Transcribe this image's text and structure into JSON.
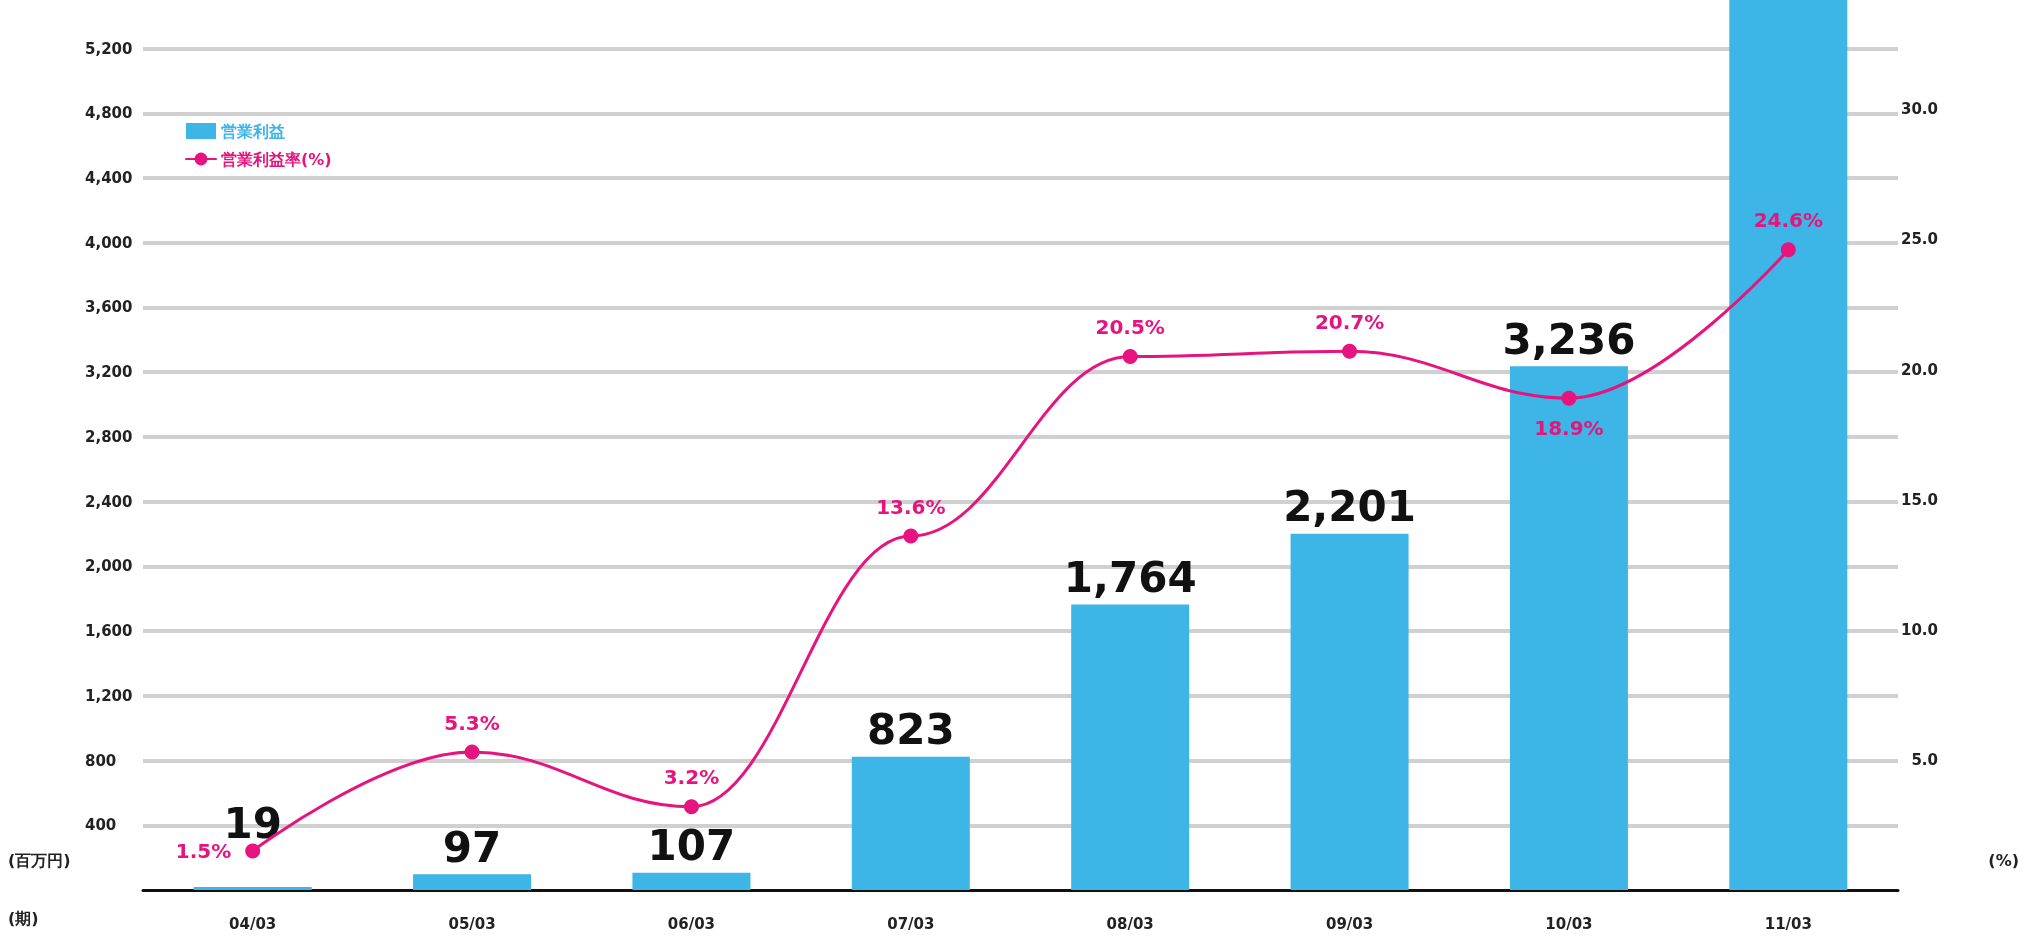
{
  "chart_data": {
    "type": "bar",
    "categories": [
      "04/03",
      "05/03",
      "06/03",
      "07/03",
      "08/03",
      "09/03",
      "10/03",
      "11/03"
    ],
    "xlabel": "(期)",
    "ylabel": "(百万円)",
    "y2label": "(%)",
    "series": [
      {
        "name": "営業利益",
        "color": "#3db5e6",
        "values": [
          19,
          97,
          107,
          823,
          1764,
          2201,
          3236,
          5500
        ],
        "value_labels": [
          "19",
          "97",
          "107",
          "823",
          "1,764",
          "2,201",
          "3,236",
          null
        ]
      },
      {
        "name": "営業利益率(%)",
        "type": "line",
        "axis": "y2",
        "color": "#e6147e",
        "marker": "circle",
        "line_style": "solid",
        "values": [
          1.5,
          5.3,
          3.2,
          13.6,
          20.5,
          20.7,
          18.9,
          24.6
        ],
        "value_labels": [
          "1.5%",
          "5.3%",
          "3.2%",
          "13.6%",
          "20.5%",
          "20.7%",
          "18.9%",
          "24.6%"
        ]
      }
    ],
    "ylim": [
      0,
      5500
    ],
    "yticks": [
      {
        "value": 400,
        "label": "400"
      },
      {
        "value": 800,
        "label": "800"
      },
      {
        "value": 1200,
        "label": "1,200"
      },
      {
        "value": 1600,
        "label": "1,600"
      },
      {
        "value": 2000,
        "label": "2,000"
      },
      {
        "value": 2400,
        "label": "2,400"
      },
      {
        "value": 2800,
        "label": "2,800"
      },
      {
        "value": 3200,
        "label": "3,200"
      },
      {
        "value": 3600,
        "label": "3,600"
      },
      {
        "value": 4000,
        "label": "4,000"
      },
      {
        "value": 4400,
        "label": "4,400"
      },
      {
        "value": 4800,
        "label": "4,800"
      },
      {
        "value": 5200,
        "label": "5,200"
      }
    ],
    "y2lim": [
      0,
      34.2
    ],
    "y2ticks": [
      {
        "value": 5,
        "label": "5.0"
      },
      {
        "value": 10,
        "label": "10.0"
      },
      {
        "value": 15,
        "label": "15.0"
      },
      {
        "value": 20,
        "label": "20.0"
      },
      {
        "value": 25,
        "label": "25.0"
      },
      {
        "value": 30,
        "label": "30.0"
      }
    ],
    "grid": "y",
    "legend": "top left"
  }
}
